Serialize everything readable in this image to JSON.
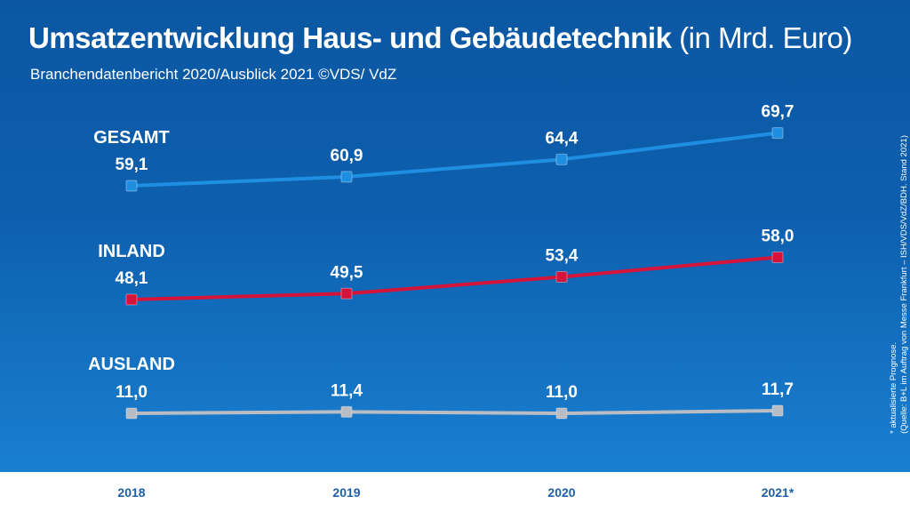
{
  "title": "Umsatzentwicklung Haus- und Gebäudetechnik",
  "title_unit": "(in Mrd. Euro)",
  "subtitle": "Branchendatenbericht 2020/Ausblick 2021 ©VDS/ VdZ",
  "footnote_line1": "* aktualisierte Prognose.",
  "footnote_line2": "(Quelle: B+L im Auftrag von Messe Frankfurt – ISH/VDS/VdZ/BDH. Stand 2021)",
  "chart_data": {
    "type": "line",
    "categories": [
      "2018",
      "2019",
      "2020",
      "2021*"
    ],
    "series": [
      {
        "name": "GESAMT",
        "values": [
          59.1,
          60.9,
          64.4,
          69.7
        ],
        "labels": [
          "59,1",
          "60,9",
          "64,4",
          "69,7"
        ],
        "color": "#1e8fe0"
      },
      {
        "name": "INLAND",
        "values": [
          48.1,
          49.5,
          53.4,
          58.0
        ],
        "labels": [
          "48,1",
          "49,5",
          "53,4",
          "58,0"
        ],
        "color": "#d4143a"
      },
      {
        "name": "AUSLAND",
        "values": [
          11.0,
          11.4,
          11.0,
          11.7
        ],
        "labels": [
          "11,0",
          "11,4",
          "11,0",
          "11,7"
        ],
        "color": "#b8bcc4"
      }
    ],
    "legend": "inline-left",
    "grid": false
  }
}
